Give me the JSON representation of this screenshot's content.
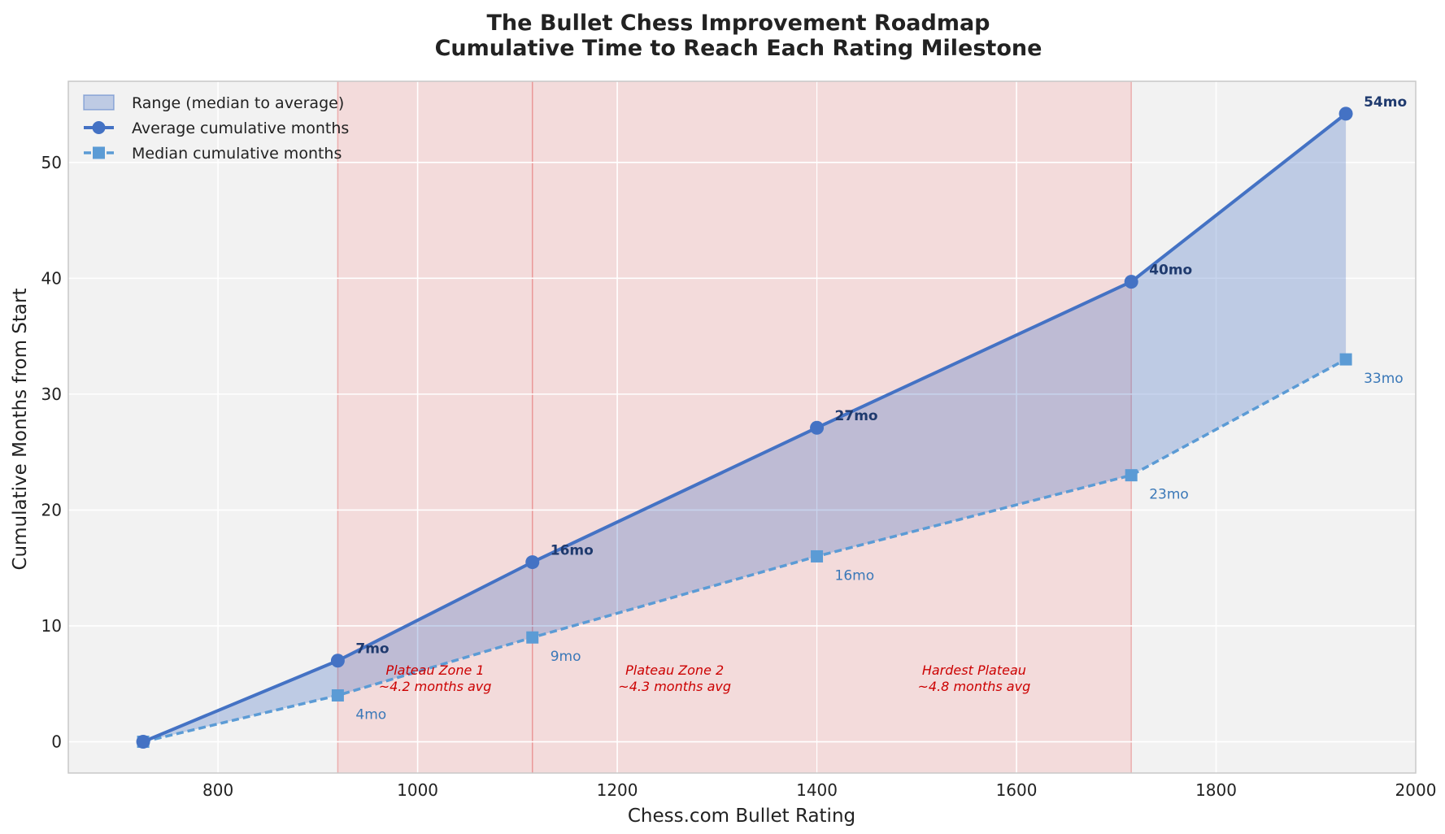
{
  "chart_data": {
    "type": "line",
    "title_line1": "The Bullet Chess Improvement Roadmap",
    "title_line2": "Cumulative Time to Reach Each Rating Milestone",
    "xlabel": "Chess.com Bullet Rating",
    "ylabel": "Cumulative Months from Start",
    "xlim": [
      650,
      2000
    ],
    "ylim": [
      -2.7,
      57
    ],
    "xticks": [
      800,
      1000,
      1200,
      1400,
      1600,
      1800,
      2000
    ],
    "yticks": [
      0,
      10,
      20,
      30,
      40,
      50
    ],
    "grid": true,
    "legend_position": "top-left",
    "x": [
      725,
      920,
      1115,
      1400,
      1715,
      1930
    ],
    "series": [
      {
        "name": "Average cumulative months",
        "values": [
          0,
          7,
          15.5,
          27.1,
          39.7,
          54.2
        ],
        "point_labels": [
          "",
          "7mo",
          "16mo",
          "27mo",
          "40mo",
          "54mo"
        ],
        "color": "#4472c4",
        "style": "solid",
        "marker": "circle"
      },
      {
        "name": "Median cumulative months",
        "values": [
          0,
          4,
          9,
          16,
          23,
          33
        ],
        "point_labels": [
          "",
          "4mo",
          "9mo",
          "16mo",
          "23mo",
          "33mo"
        ],
        "color": "#5b9bd5",
        "style": "dashed",
        "marker": "square"
      }
    ],
    "fill_between": {
      "name": "Range (median to average)",
      "color": "#4472c4"
    },
    "plateau_zones": [
      {
        "x0": 920,
        "x1": 1115,
        "label_line1": "Plateau Zone 1",
        "label_line2": "~4.2 months avg"
      },
      {
        "x0": 1115,
        "x1": 1400,
        "label_line1": "Plateau Zone 2",
        "label_line2": "~4.3 months avg"
      },
      {
        "x0": 1400,
        "x1": 1715,
        "label_line1": "Hardest Plateau",
        "label_line2": "~4.8 months avg"
      }
    ],
    "zone_color": "#f4a6a6",
    "background_color": "#f2f2f2"
  }
}
